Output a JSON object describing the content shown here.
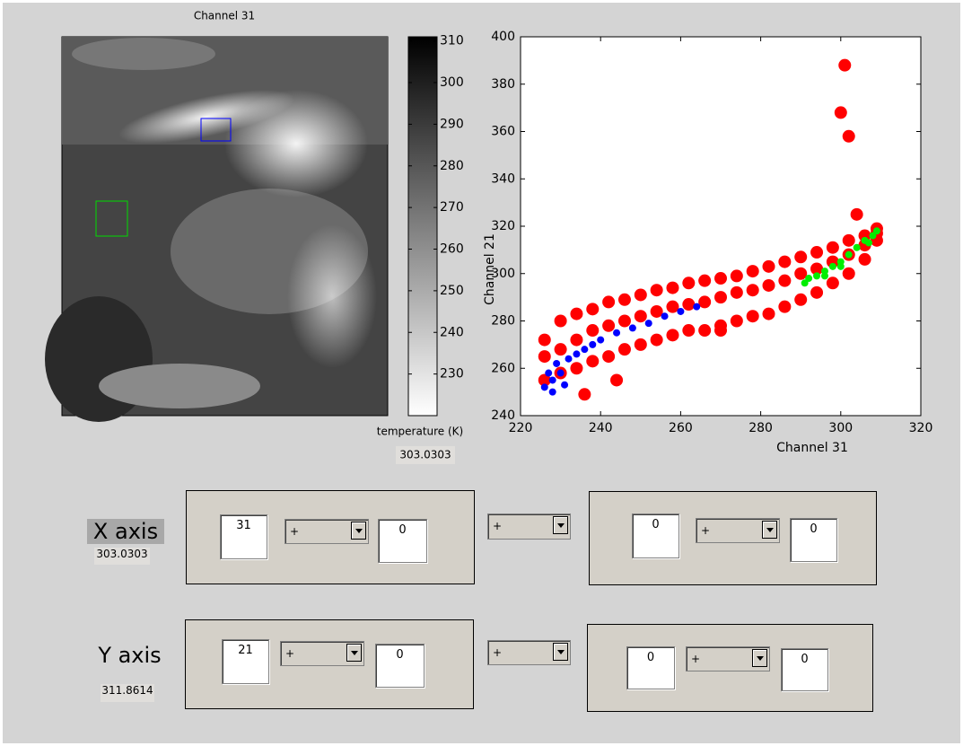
{
  "image_panel": {
    "title": "Channel 31"
  },
  "colorbar": {
    "label": "temperature (K)",
    "readout": "303.0303",
    "lim": [
      220,
      311
    ],
    "ticks": [
      230,
      240,
      250,
      260,
      270,
      280,
      290,
      300,
      310
    ]
  },
  "chart_data": {
    "type": "scatter",
    "xlabel": "Channel 31",
    "ylabel": "Channel 21",
    "xlim": [
      220,
      320
    ],
    "ylim": [
      240,
      400
    ],
    "xticks": [
      220,
      240,
      260,
      280,
      300,
      320
    ],
    "yticks": [
      240,
      260,
      280,
      300,
      320,
      340,
      360,
      380,
      400
    ],
    "series": [
      {
        "color": "#ff0000",
        "x": [
          226,
          226,
          226,
          230,
          230,
          230,
          234,
          234,
          234,
          238,
          238,
          238,
          242,
          242,
          242,
          246,
          246,
          246,
          250,
          250,
          250,
          254,
          254,
          254,
          258,
          258,
          258,
          262,
          262,
          262,
          266,
          266,
          266,
          270,
          270,
          270,
          274,
          274,
          274,
          278,
          278,
          278,
          282,
          282,
          282,
          286,
          286,
          286,
          290,
          290,
          290,
          294,
          294,
          294,
          298,
          298,
          298,
          302,
          302,
          302,
          306,
          306,
          306,
          309,
          309,
          309,
          301,
          300,
          302,
          304,
          236,
          244,
          270
        ],
        "values": [
          255,
          265,
          272,
          258,
          268,
          280,
          260,
          272,
          283,
          263,
          276,
          285,
          265,
          278,
          288,
          268,
          280,
          289,
          270,
          282,
          291,
          272,
          284,
          293,
          274,
          286,
          294,
          276,
          287,
          296,
          276,
          288,
          297,
          278,
          290,
          298,
          280,
          292,
          299,
          282,
          293,
          301,
          283,
          295,
          303,
          286,
          297,
          305,
          289,
          300,
          307,
          292,
          302,
          309,
          296,
          305,
          311,
          300,
          308,
          314,
          306,
          312,
          316,
          314,
          317,
          319,
          388,
          368,
          358,
          325,
          249,
          255,
          276
        ]
      },
      {
        "color": "#0000ff",
        "x": [
          226,
          227,
          228,
          229,
          230,
          232,
          234,
          236,
          238,
          240,
          244,
          248,
          252,
          256,
          260,
          264,
          231,
          228
        ],
        "values": [
          252,
          258,
          255,
          262,
          258,
          264,
          266,
          268,
          270,
          272,
          275,
          277,
          279,
          282,
          284,
          286,
          253,
          250
        ]
      },
      {
        "color": "#00ee00",
        "x": [
          291,
          292,
          294,
          296,
          298,
          300,
          302,
          304,
          306,
          308,
          309,
          307,
          300,
          296
        ],
        "values": [
          296,
          298,
          299,
          301,
          303,
          305,
          308,
          311,
          314,
          316,
          318,
          313,
          303,
          299
        ]
      }
    ]
  },
  "controls": {
    "x_axis": {
      "label": "X axis",
      "readout": "303.0303",
      "left": {
        "channel": "31",
        "operator": "+",
        "offset": "0"
      },
      "combine": "+",
      "right": {
        "channel": "0",
        "operator": "+",
        "offset": "0"
      }
    },
    "y_axis": {
      "label": "Y axis",
      "readout": "311.8614",
      "left": {
        "channel": "21",
        "operator": "+",
        "offset": "0"
      },
      "combine": "+",
      "right": {
        "channel": "0",
        "operator": "+",
        "offset": "0"
      }
    }
  }
}
